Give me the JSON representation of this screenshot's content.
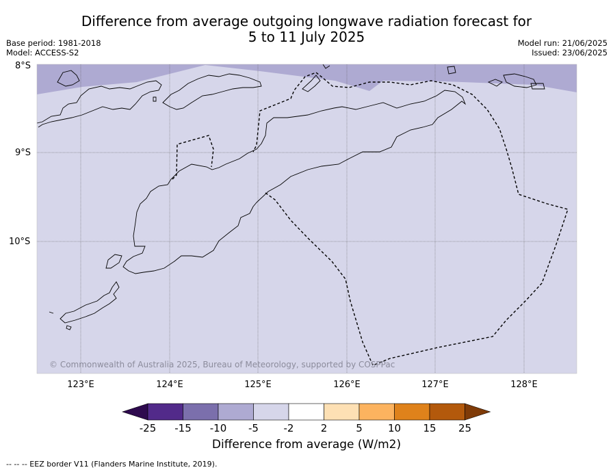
{
  "title_line1": "Difference from average outgoing longwave radiation forecast for",
  "title_line2": "5 to 11 July 2025",
  "meta": {
    "base_period": "Base period: 1981-2018",
    "model": "Model: ACCESS-S2",
    "model_run": "Model run: 21/06/2025",
    "issued": "Issued: 23/06/2025"
  },
  "map": {
    "lat_labels": [
      "8°S",
      "9°S",
      "10°S"
    ],
    "lon_labels": [
      "123°E",
      "124°E",
      "125°E",
      "126°E",
      "127°E",
      "128°E"
    ],
    "copyright": "© Commonwealth of Australia 2025, Bureau of Meteorology, supported by COSPPac",
    "fill_colors": {
      "background": "#d6d6ea",
      "anomaly_band": "#aeaad2"
    }
  },
  "colorbar": {
    "title": "Difference from average (W/m2)",
    "ticks": [
      "-25",
      "-15",
      "-10",
      "-5",
      "-2",
      "2",
      "5",
      "10",
      "15",
      "25"
    ],
    "colors": [
      "#522a8a",
      "#7b6fac",
      "#aeaad2",
      "#d6d6ea",
      "#ffffff",
      "#fde0b4",
      "#fcb35f",
      "#df821b",
      "#b3590c"
    ],
    "extend_low": "#2e0a4e",
    "extend_high": "#7f3b08"
  },
  "footer": "--  --  -- EEZ border V11 (Flanders Marine Institute, 2019)."
}
